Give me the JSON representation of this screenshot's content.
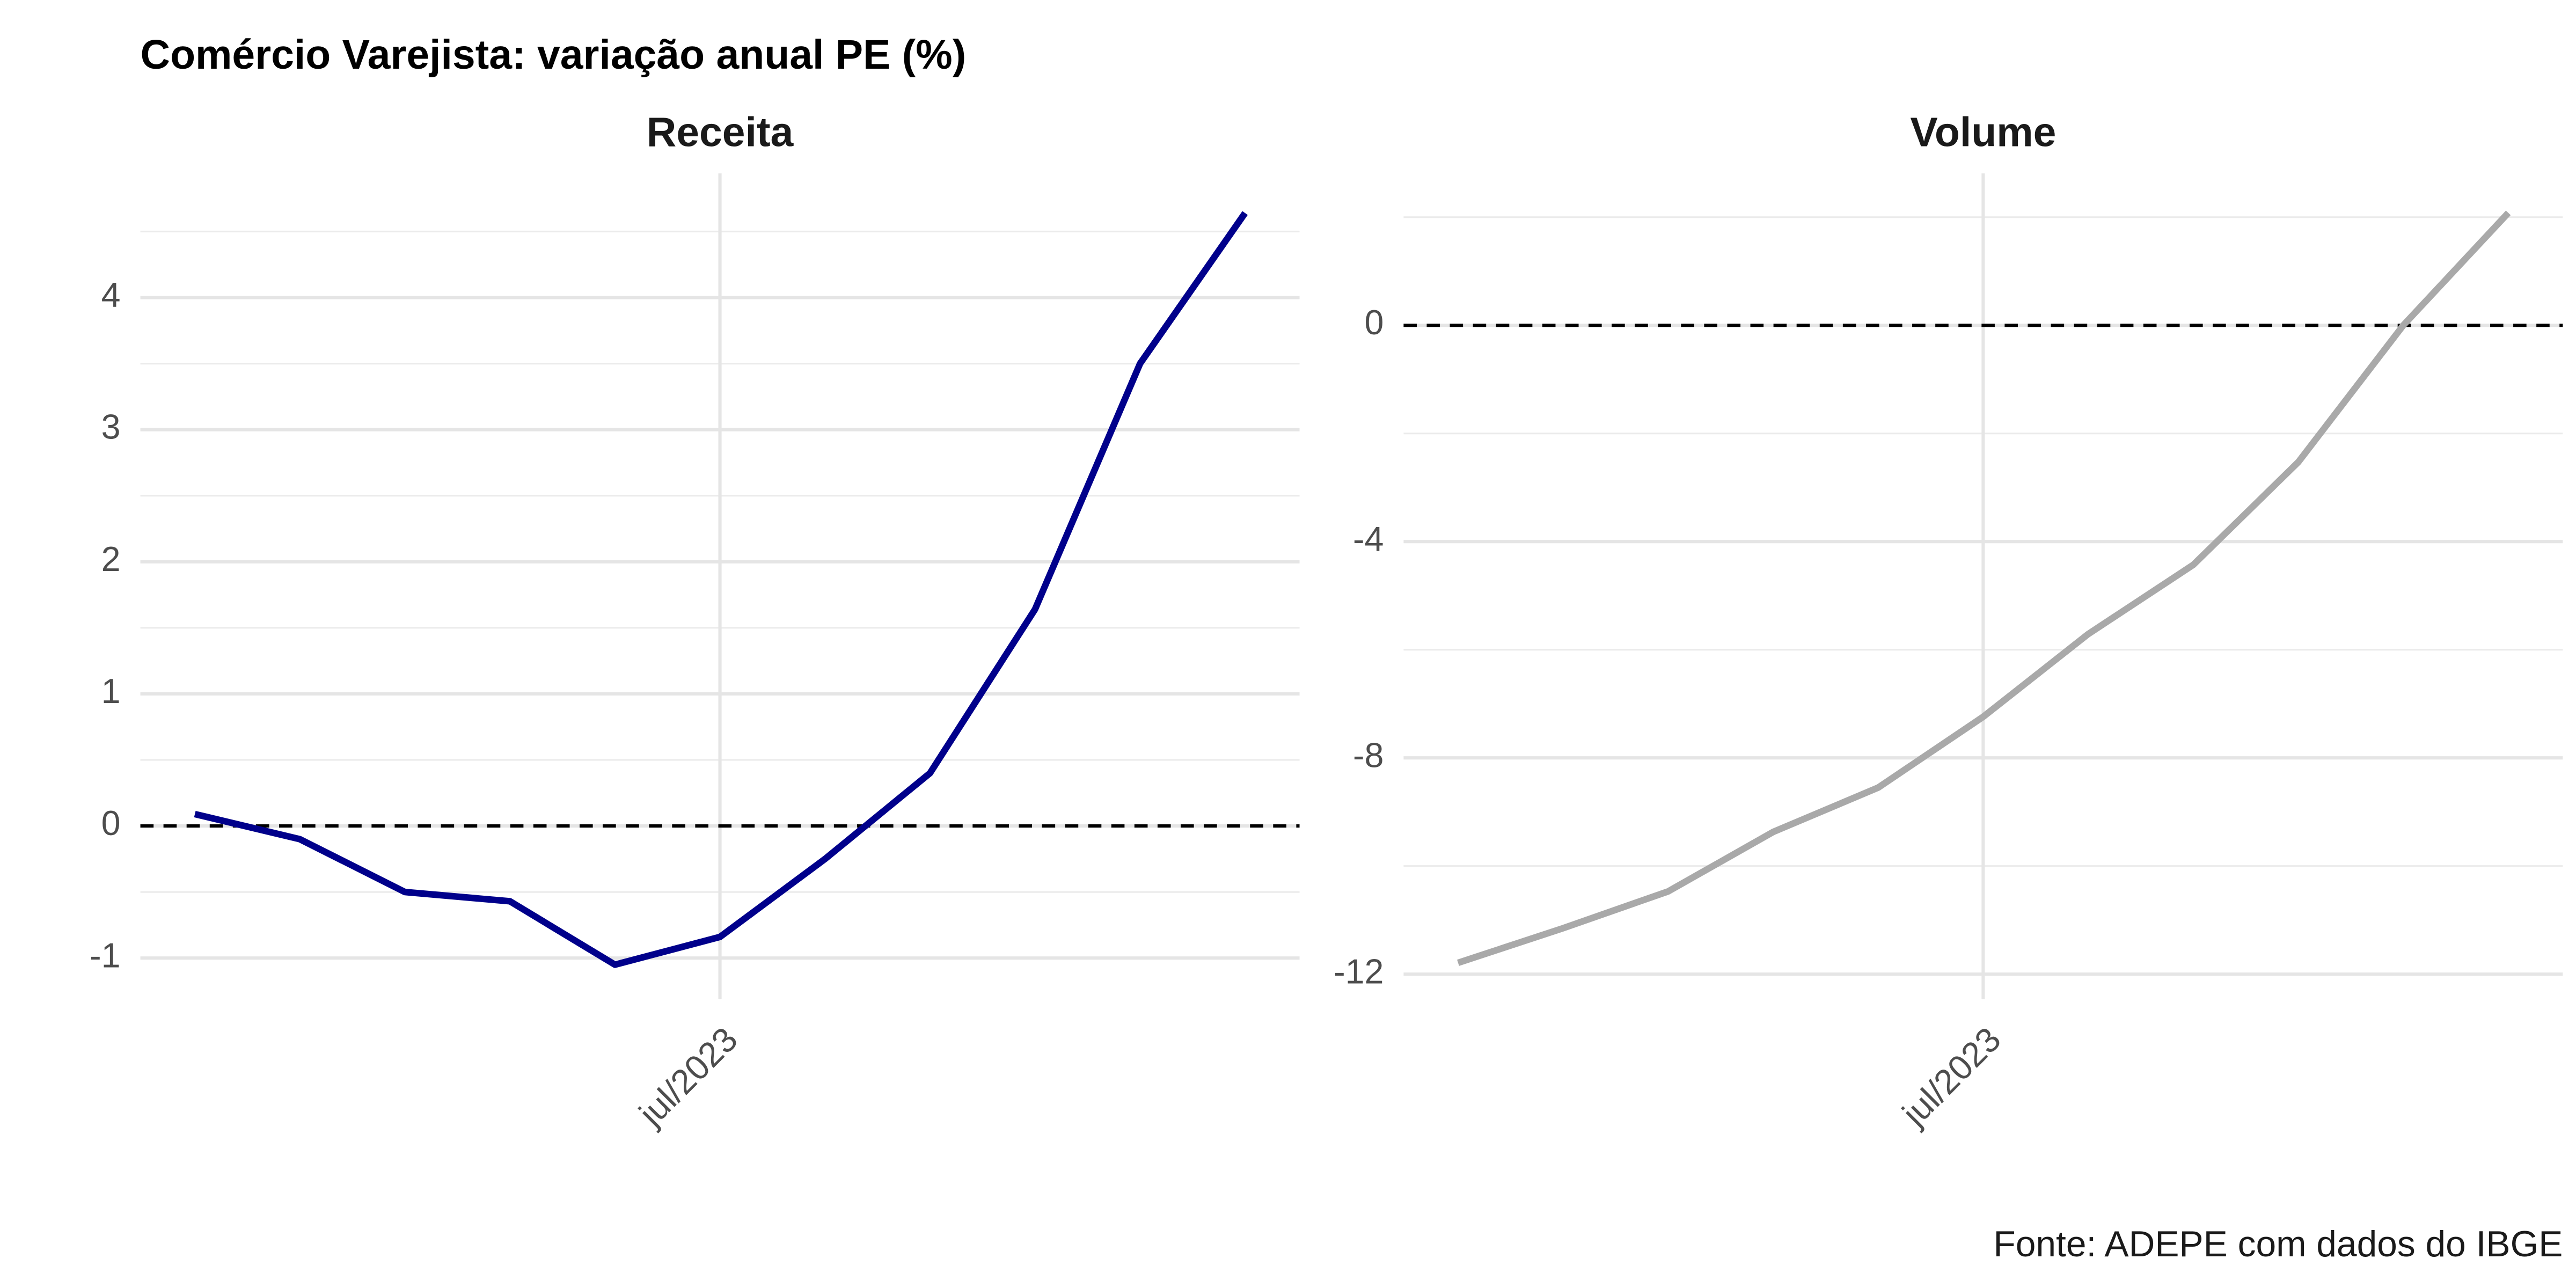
{
  "title": "Comércio Varejista: variação anual PE (%)",
  "caption": "Fonte: ADEPE com dados do IBGE",
  "chart_data": [
    {
      "type": "line",
      "title": "Receita",
      "x": [
        "2023-02",
        "2023-03",
        "2023-04",
        "2023-05",
        "2023-06",
        "2023-07",
        "2023-08",
        "2023-09",
        "2023-10",
        "2023-11",
        "2023-12"
      ],
      "series": [
        {
          "name": "Receita",
          "color": "#00008b",
          "values": [
            0.09,
            -0.1,
            -0.5,
            -0.57,
            -1.05,
            -0.84,
            -0.25,
            0.4,
            1.64,
            3.5,
            4.64
          ]
        }
      ],
      "xticks": [
        {
          "value": "2023-07",
          "label": "jul/2023"
        }
      ],
      "ylim": [
        -1.31,
        4.94
      ],
      "yticks": [
        -1,
        0,
        1,
        2,
        3,
        4
      ],
      "hline": 0,
      "grid": true
    },
    {
      "type": "line",
      "title": "Volume",
      "x": [
        "2023-02",
        "2023-03",
        "2023-04",
        "2023-05",
        "2023-06",
        "2023-07",
        "2023-08",
        "2023-09",
        "2023-10",
        "2023-11",
        "2023-12"
      ],
      "series": [
        {
          "name": "Volume",
          "color": "#a9a9a9",
          "values": [
            -11.79,
            -11.15,
            -10.47,
            -9.37,
            -8.55,
            -7.24,
            -5.71,
            -4.43,
            -2.53,
            0.0,
            2.08
          ]
        }
      ],
      "xticks": [
        {
          "value": "2023-07",
          "label": "jul/2023"
        }
      ],
      "ylim": [
        -12.46,
        2.81
      ],
      "yticks": [
        -12,
        -8,
        -4,
        0
      ],
      "hline": 0,
      "grid": true
    }
  ]
}
